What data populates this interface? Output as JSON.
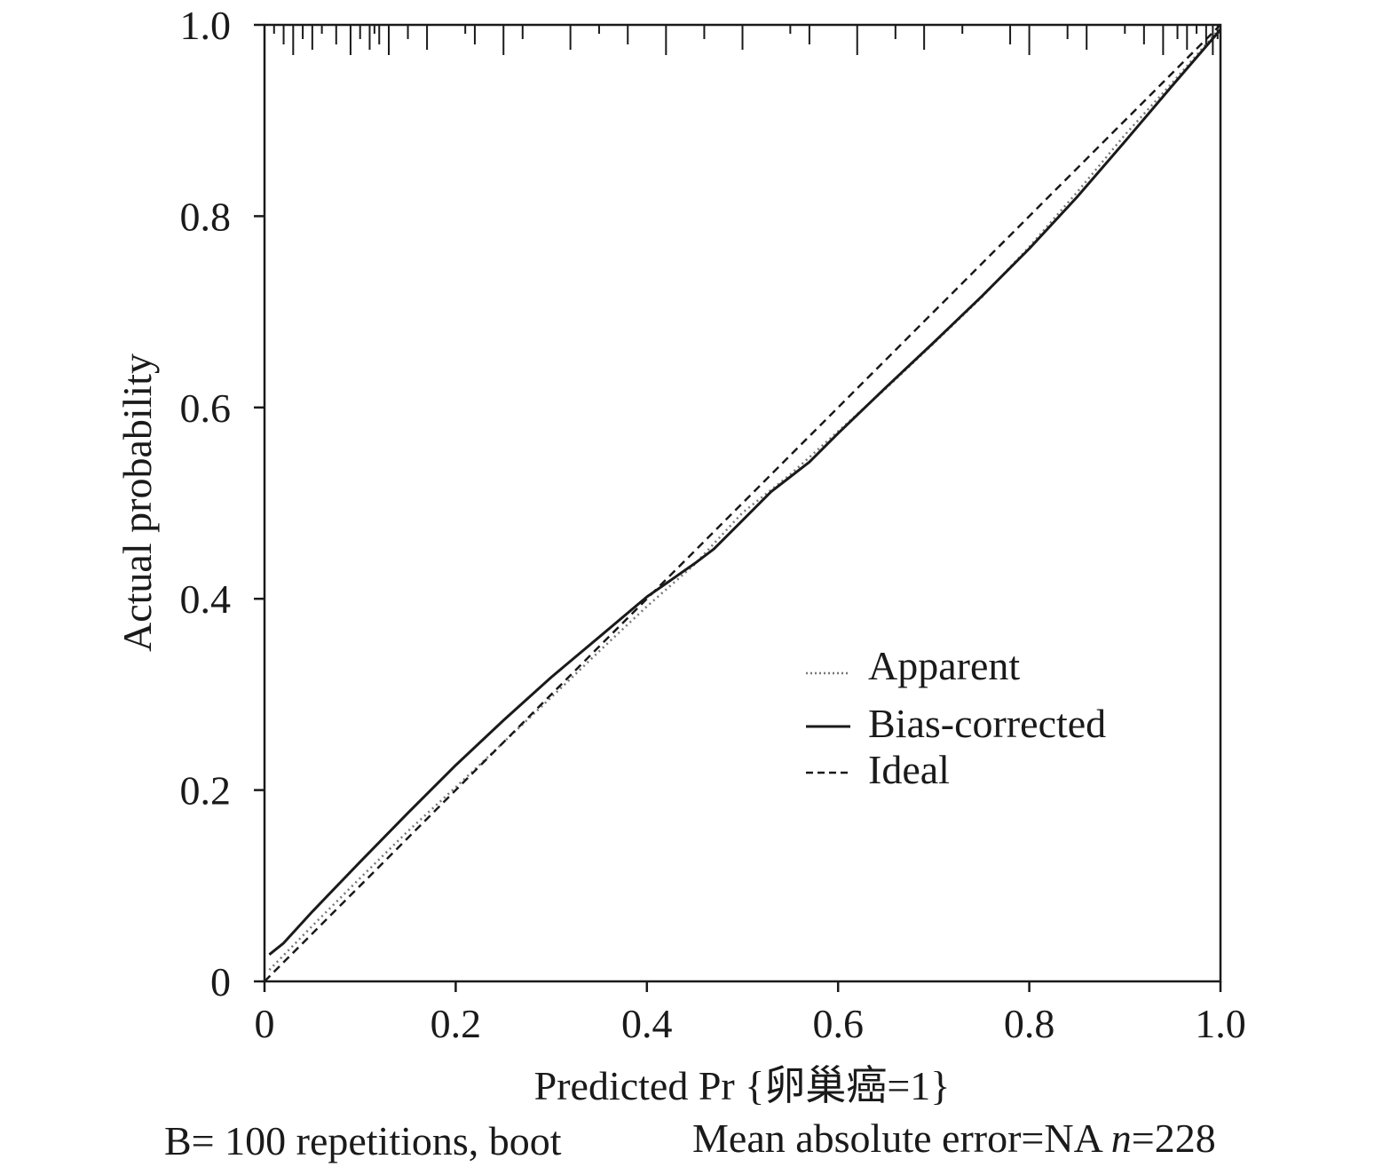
{
  "chart_data": {
    "type": "line",
    "xlabel": "Predicted Pr {卵巢癌=1}",
    "ylabel": "Actual probability",
    "xlim": [
      0,
      1
    ],
    "ylim": [
      0,
      1
    ],
    "x_ticks": [
      "0",
      "0.2",
      "0.4",
      "0.6",
      "0.8",
      "1.0"
    ],
    "y_ticks": [
      "0",
      "0.2",
      "0.4",
      "0.6",
      "0.8",
      "1.0"
    ],
    "x_tick_values": [
      0,
      0.2,
      0.4,
      0.6,
      0.8,
      1.0
    ],
    "y_tick_values": [
      0,
      0.2,
      0.4,
      0.6,
      0.8,
      1.0
    ],
    "legend_position": "lower-right",
    "grid": false,
    "series": [
      {
        "name": "Apparent",
        "style": "dotted",
        "color": "#777777",
        "points": [
          [
            0.005,
            0.012
          ],
          [
            0.05,
            0.058
          ],
          [
            0.1,
            0.108
          ],
          [
            0.15,
            0.157
          ],
          [
            0.2,
            0.203
          ],
          [
            0.25,
            0.25
          ],
          [
            0.3,
            0.297
          ],
          [
            0.35,
            0.345
          ],
          [
            0.4,
            0.392
          ],
          [
            0.45,
            0.436
          ],
          [
            0.5,
            0.49
          ],
          [
            0.55,
            0.53
          ],
          [
            0.6,
            0.575
          ],
          [
            0.65,
            0.62
          ],
          [
            0.7,
            0.667
          ],
          [
            0.75,
            0.715
          ],
          [
            0.8,
            0.768
          ],
          [
            0.85,
            0.825
          ],
          [
            0.9,
            0.885
          ],
          [
            0.95,
            0.94
          ],
          [
            1.0,
            0.997
          ]
        ]
      },
      {
        "name": "Bias-corrected",
        "style": "solid",
        "color": "#1a1a1a",
        "points": [
          [
            0.005,
            0.028
          ],
          [
            0.02,
            0.04
          ],
          [
            0.05,
            0.073
          ],
          [
            0.1,
            0.125
          ],
          [
            0.15,
            0.176
          ],
          [
            0.2,
            0.226
          ],
          [
            0.25,
            0.273
          ],
          [
            0.3,
            0.318
          ],
          [
            0.35,
            0.36
          ],
          [
            0.4,
            0.402
          ],
          [
            0.45,
            0.437
          ],
          [
            0.47,
            0.452
          ],
          [
            0.5,
            0.482
          ],
          [
            0.53,
            0.512
          ],
          [
            0.57,
            0.543
          ],
          [
            0.6,
            0.573
          ],
          [
            0.65,
            0.621
          ],
          [
            0.7,
            0.668
          ],
          [
            0.75,
            0.716
          ],
          [
            0.8,
            0.766
          ],
          [
            0.85,
            0.82
          ],
          [
            0.9,
            0.878
          ],
          [
            0.95,
            0.937
          ],
          [
            1.0,
            0.995
          ]
        ]
      },
      {
        "name": "Ideal",
        "style": "dashed",
        "color": "#1a1a1a",
        "points": [
          [
            0,
            0
          ],
          [
            1,
            1
          ]
        ]
      }
    ],
    "rug_predictions": [
      0.01,
      0.02,
      0.03,
      0.04,
      0.05,
      0.06,
      0.075,
      0.09,
      0.1,
      0.11,
      0.115,
      0.12,
      0.13,
      0.15,
      0.17,
      0.21,
      0.22,
      0.25,
      0.27,
      0.32,
      0.35,
      0.38,
      0.42,
      0.46,
      0.5,
      0.55,
      0.57,
      0.62,
      0.66,
      0.69,
      0.73,
      0.78,
      0.8,
      0.84,
      0.86,
      0.9,
      0.92,
      0.94,
      0.955,
      0.965,
      0.975,
      0.985,
      0.992,
      0.997,
      1.0
    ]
  },
  "legend": {
    "apparent": "Apparent",
    "bias_corrected": "Bias-corrected",
    "ideal": "Ideal"
  },
  "caption": {
    "bootstrap": "B= 100 repetitions, boot",
    "error_prefix": "Mean absolute error=NA ",
    "n_symbol": "n",
    "n_value": "=228"
  }
}
